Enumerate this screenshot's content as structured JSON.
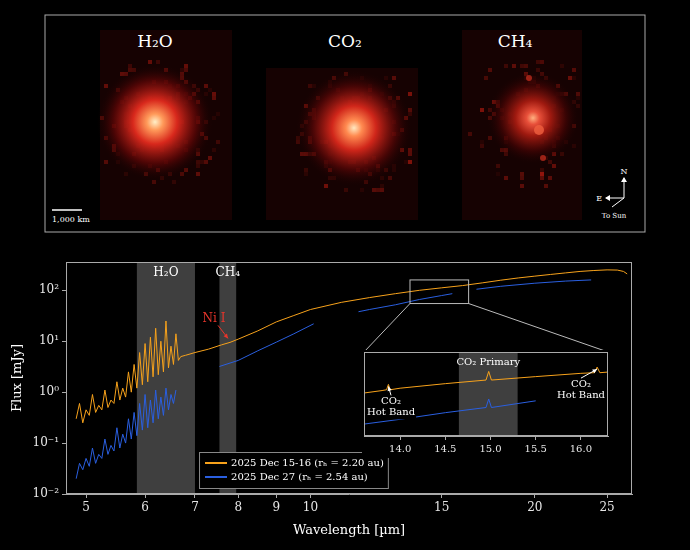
{
  "maps": {
    "panels": [
      "H₂O",
      "CO₂",
      "CH₄"
    ],
    "scale_bar": "1,000 km",
    "compass": [
      "N",
      "E",
      "To Sun"
    ]
  },
  "chart_data": [
    {
      "type": "line",
      "x_label": "Wavelength [µm]",
      "y_label": "Flux [mJy]",
      "log": true,
      "grid": false,
      "legend": "lower left",
      "xlim": [
        4.7,
        27
      ],
      "xticks": [
        5,
        6,
        7,
        8,
        9,
        10,
        15,
        20,
        25
      ],
      "ylim": [
        0.01,
        360
      ],
      "yticks": [
        {
          "value": 0.01,
          "label": "10⁻²"
        },
        {
          "value": 0.1,
          "label": "10⁻¹"
        },
        {
          "value": 1,
          "label": "10⁰"
        },
        {
          "value": 10,
          "label": "10¹"
        },
        {
          "value": 100,
          "label": "10²"
        }
      ],
      "bands": [
        {
          "label": "H₂O",
          "range": [
            5.85,
            7.0
          ]
        },
        {
          "label": "CH₄",
          "range": [
            7.55,
            7.95
          ]
        }
      ],
      "annotations": [
        {
          "text": "Ni I",
          "x": 7.8,
          "y": 9.5,
          "color": "#e8352b"
        }
      ],
      "series": [
        {
          "name": "2025 Dec 15-16 (rₕ = 2.20 au)",
          "color": "#f7a21b",
          "x": [
            4.85,
            4.9,
            4.95,
            5.0,
            5.05,
            5.1,
            5.15,
            5.2,
            5.25,
            5.3,
            5.35,
            5.4,
            5.45,
            5.5,
            5.55,
            5.6,
            5.65,
            5.7,
            5.75,
            5.8,
            5.85,
            5.9,
            5.95,
            6.0,
            6.05,
            6.1,
            6.15,
            6.2,
            6.25,
            6.3,
            6.35,
            6.4,
            6.45,
            6.5,
            6.55,
            6.6,
            6.65,
            6.7,
            6.8,
            7.0,
            7.3,
            7.6,
            7.8,
            8.0,
            8.5,
            9,
            9.5,
            10,
            11,
            12,
            13,
            14,
            15,
            16,
            17,
            18,
            19,
            20,
            21,
            22,
            23,
            24,
            25,
            25.8,
            26.3,
            26.6
          ],
          "values": [
            0.3,
            0.6,
            0.25,
            0.45,
            0.35,
            0.9,
            0.4,
            0.55,
            0.45,
            1.1,
            0.5,
            0.7,
            0.6,
            1.6,
            0.7,
            1.2,
            0.8,
            2.5,
            1.0,
            3.5,
            1.2,
            6,
            1.4,
            9,
            1.6,
            12,
            2,
            18,
            2.2,
            10,
            2.5,
            25,
            3,
            8,
            3.5,
            14,
            4.2,
            5,
            5.3,
            6,
            7,
            8.5,
            9.5,
            11,
            16,
            24,
            32,
            42,
            58,
            72,
            86,
            100,
            112,
            124,
            140,
            158,
            175,
            190,
            205,
            220,
            235,
            245,
            252,
            250,
            235,
            210
          ]
        },
        {
          "name": "2025 Dec 27 (rₕ = 2.54 au)",
          "color": "#2a5fe0",
          "x": [
            4.85,
            4.9,
            4.95,
            5.0,
            5.05,
            5.1,
            5.15,
            5.2,
            5.25,
            5.3,
            5.35,
            5.4,
            5.45,
            5.5,
            5.55,
            5.6,
            5.65,
            5.7,
            5.75,
            5.8,
            5.85,
            5.9,
            5.95,
            6.0,
            6.05,
            6.1,
            6.15,
            6.2,
            6.25,
            6.3,
            6.35,
            6.4,
            6.45,
            6.5,
            6.55,
            6.6,
            7.0,
            7.55,
            8,
            8.5,
            9,
            9.5,
            10.1,
            11,
            11.6,
            12,
            13,
            14,
            15,
            15.5,
            16,
            16.7,
            18,
            20,
            22,
            23.8
          ],
          "values": [
            0.02,
            0.04,
            0.03,
            0.05,
            0.035,
            0.08,
            0.04,
            0.06,
            0.05,
            0.12,
            0.06,
            0.09,
            0.07,
            0.2,
            0.08,
            0.15,
            0.1,
            0.3,
            0.12,
            0.4,
            0.14,
            0.6,
            0.18,
            0.9,
            0.2,
            0.7,
            0.25,
            1.1,
            0.3,
            0.8,
            0.35,
            1.2,
            0.45,
            0.9,
            0.6,
            1.1,
            null,
            3.2,
            4.2,
            6.5,
            9.6,
            14,
            22,
            null,
            38,
            42,
            52,
            66,
            79,
            86,
            null,
            105,
            120,
            138,
            152,
            160
          ]
        }
      ]
    },
    {
      "type": "line",
      "log": "y",
      "grid": false,
      "tick_labels": "x",
      "xlim": [
        13.6,
        16.3
      ],
      "xticks": [
        {
          "value": 14,
          "label": "14.0"
        },
        14.5,
        {
          "value": 15,
          "label": "15.0"
        },
        15.5,
        {
          "value": 16,
          "label": "16.0"
        }
      ],
      "ylim": [
        55,
        160
      ],
      "bands": [
        {
          "label": "CO₂ Primary",
          "range": [
            14.65,
            15.3
          ]
        }
      ],
      "annotations": [
        {
          "text": "CO₂ Hot Band",
          "x": 13.87,
          "y": 106
        },
        {
          "text": "CO₂ Hot Band",
          "x": 16.18,
          "y": 132
        }
      ],
      "series": [
        {
          "color": "#f7a21b",
          "x": [
            13.6,
            13.8,
            13.85,
            13.87,
            13.89,
            14.0,
            14.5,
            14.95,
            14.98,
            15.01,
            15.5,
            16.0,
            16.15,
            16.18,
            16.21,
            16.3
          ],
          "values": [
            95,
            98,
            99,
            106,
            99,
            101,
            107,
            112,
            125,
            112,
            117,
            122,
            123,
            132,
            123,
            124
          ]
        },
        {
          "color": "#2a5fe0",
          "x": [
            13.6,
            14.0,
            14.5,
            14.95,
            14.98,
            15.01,
            15.5
          ],
          "values": [
            64,
            68,
            74,
            79,
            88,
            79,
            86
          ]
        }
      ]
    }
  ]
}
